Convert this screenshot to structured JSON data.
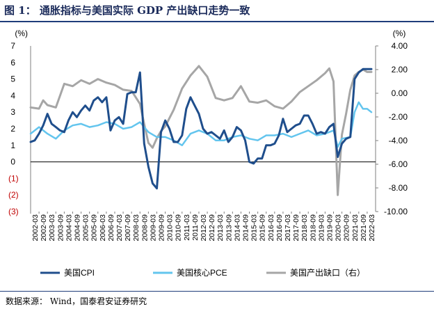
{
  "title": "图 1： 通胀指标与美国实际 GDP 产出缺口走势一致",
  "source": "数据来源： Wind，国泰君安证券研究",
  "colors": {
    "cpi": "#1f4e8c",
    "core_pce": "#63c5ee",
    "gap": "#a6a6a6",
    "neg_label": "#c00000",
    "rule": "#1f3d7a"
  },
  "chart_data": {
    "type": "line",
    "y_left_label": "(%)",
    "y_right_label": "(%)",
    "y_left_ticks": [
      "7",
      "6",
      "5",
      "4",
      "3",
      "2",
      "1",
      "0",
      "(1)",
      "(2)",
      "(3)"
    ],
    "y_left_values": [
      7,
      6,
      5,
      4,
      3,
      2,
      1,
      0,
      -1,
      -2,
      -3
    ],
    "y_right_ticks": [
      "4.00",
      "2.00",
      "0.00",
      "-2.00",
      "-4.00",
      "-6.00",
      "-8.00",
      "-10.00"
    ],
    "y_right_values": [
      4,
      2,
      0,
      -2,
      -4,
      -6,
      -8,
      -10
    ],
    "ylim_left": [
      -3,
      7
    ],
    "ylim_right": [
      -10,
      4
    ],
    "x_ticks": [
      "2002-03",
      "2002-09",
      "2003-03",
      "2003-09",
      "2004-03",
      "2004-09",
      "2005-03",
      "2005-09",
      "2006-03",
      "2006-09",
      "2007-03",
      "2007-09",
      "2008-03",
      "2008-09",
      "2009-03",
      "2009-09",
      "2010-03",
      "2010-09",
      "2011-03",
      "2011-09",
      "2012-03",
      "2012-09",
      "2013-03",
      "2013-09",
      "2014-03",
      "2014-09",
      "2015-03",
      "2015-09",
      "2016-03",
      "2016-09",
      "2017-03",
      "2017-09",
      "2018-03",
      "2018-09",
      "2019-03",
      "2019-09",
      "2020-03",
      "2020-09",
      "2021-03",
      "2021-09",
      "2022-03"
    ],
    "x_range": [
      2002.0,
      2022.5
    ],
    "legend": [
      "美国CPI",
      "美国核心PCE",
      "美国产出缺口（右）"
    ],
    "series": [
      {
        "name": "美国CPI",
        "axis": "left",
        "x": [
          2002.0,
          2002.25,
          2002.5,
          2002.75,
          2003.0,
          2003.25,
          2003.5,
          2003.75,
          2004.0,
          2004.25,
          2004.5,
          2004.75,
          2005.0,
          2005.25,
          2005.5,
          2005.75,
          2006.0,
          2006.25,
          2006.5,
          2006.75,
          2007.0,
          2007.25,
          2007.5,
          2007.75,
          2008.0,
          2008.25,
          2008.5,
          2008.75,
          2009.0,
          2009.25,
          2009.5,
          2009.75,
          2010.0,
          2010.25,
          2010.5,
          2010.75,
          2011.0,
          2011.25,
          2011.5,
          2011.75,
          2012.0,
          2012.25,
          2012.5,
          2012.75,
          2013.0,
          2013.25,
          2013.5,
          2013.75,
          2014.0,
          2014.25,
          2014.5,
          2014.75,
          2015.0,
          2015.25,
          2015.5,
          2015.75,
          2016.0,
          2016.25,
          2016.5,
          2016.75,
          2017.0,
          2017.25,
          2017.5,
          2017.75,
          2018.0,
          2018.25,
          2018.5,
          2018.75,
          2019.0,
          2019.25,
          2019.5,
          2019.75,
          2020.0,
          2020.25,
          2020.5,
          2020.75,
          2021.0,
          2021.25,
          2021.5,
          2021.75,
          2022.0,
          2022.25
        ],
        "y": [
          1.2,
          1.3,
          1.7,
          2.2,
          2.9,
          2.3,
          2.1,
          1.9,
          1.8,
          2.5,
          3.0,
          2.7,
          3.1,
          3.4,
          3.1,
          3.7,
          3.9,
          3.6,
          3.9,
          1.9,
          2.5,
          2.7,
          2.3,
          4.1,
          4.2,
          4.2,
          5.4,
          1.1,
          -0.3,
          -1.3,
          -1.6,
          1.8,
          2.5,
          2.0,
          1.2,
          1.2,
          1.6,
          3.2,
          3.9,
          3.4,
          2.9,
          2.0,
          1.7,
          1.8,
          1.6,
          1.4,
          1.9,
          1.2,
          1.5,
          2.1,
          1.9,
          1.3,
          0.0,
          -0.1,
          0.2,
          0.2,
          1.0,
          1.0,
          1.1,
          1.6,
          2.6,
          1.8,
          2.0,
          2.2,
          2.3,
          2.8,
          2.8,
          2.3,
          1.7,
          1.8,
          1.7,
          2.1,
          2.3,
          0.3,
          1.1,
          1.4,
          1.5,
          5.0,
          5.4,
          5.6,
          5.6,
          5.6
        ]
      },
      {
        "name": "美国核心PCE",
        "axis": "left",
        "x": [
          2002.0,
          2002.5,
          2003.0,
          2003.5,
          2004.0,
          2004.5,
          2005.0,
          2005.5,
          2006.0,
          2006.5,
          2007.0,
          2007.5,
          2008.0,
          2008.5,
          2009.0,
          2009.5,
          2010.0,
          2010.5,
          2011.0,
          2011.5,
          2012.0,
          2012.5,
          2013.0,
          2013.5,
          2014.0,
          2014.5,
          2015.0,
          2015.5,
          2016.0,
          2016.5,
          2017.0,
          2017.5,
          2018.0,
          2018.5,
          2019.0,
          2019.5,
          2020.0,
          2020.25,
          2020.5,
          2021.0,
          2021.25,
          2021.5,
          2021.75,
          2022.0,
          2022.25
        ],
        "y": [
          1.7,
          2.1,
          1.7,
          1.4,
          1.9,
          2.2,
          2.3,
          2.1,
          2.2,
          2.4,
          2.3,
          2.0,
          2.1,
          2.4,
          1.8,
          1.5,
          1.5,
          1.3,
          1.0,
          1.7,
          1.9,
          1.7,
          1.3,
          1.3,
          1.5,
          1.6,
          1.4,
          1.3,
          1.6,
          1.6,
          1.7,
          1.5,
          1.7,
          1.9,
          1.6,
          1.7,
          1.9,
          0.9,
          1.4,
          1.5,
          3.0,
          3.6,
          3.2,
          3.2,
          3.0
        ]
      },
      {
        "name": "美国产出缺口（右）",
        "axis": "right",
        "x": [
          2002.0,
          2002.5,
          2002.75,
          2003.0,
          2003.5,
          2004.0,
          2004.5,
          2005.0,
          2005.5,
          2006.0,
          2006.5,
          2007.0,
          2007.5,
          2008.0,
          2008.5,
          2008.75,
          2009.0,
          2009.25,
          2009.5,
          2009.75,
          2010.0,
          2010.5,
          2011.0,
          2011.5,
          2012.0,
          2012.5,
          2013.0,
          2013.5,
          2014.0,
          2014.5,
          2015.0,
          2015.5,
          2016.0,
          2016.5,
          2017.0,
          2017.5,
          2018.0,
          2018.5,
          2019.0,
          2019.5,
          2019.75,
          2020.0,
          2020.25,
          2020.5,
          2020.75,
          2021.0,
          2021.25,
          2021.5,
          2021.75,
          2022.0,
          2022.25
        ],
        "y": [
          -1.2,
          -1.3,
          -0.6,
          -1.0,
          -1.2,
          0.8,
          0.6,
          1.1,
          0.8,
          1.2,
          0.9,
          0.7,
          0.3,
          0.2,
          -0.9,
          -2.6,
          -4.2,
          -4.6,
          -3.8,
          -3.2,
          -2.8,
          -1.4,
          0.4,
          1.5,
          2.3,
          1.4,
          -0.4,
          -0.6,
          -0.4,
          0.6,
          -0.7,
          -0.8,
          -0.6,
          -1.1,
          -1.3,
          -0.7,
          0.1,
          0.6,
          1.1,
          1.7,
          2.1,
          1.0,
          -8.6,
          -3.5,
          -1.7,
          0.3,
          1.5,
          1.8,
          2.0,
          1.8,
          1.8
        ]
      }
    ]
  }
}
